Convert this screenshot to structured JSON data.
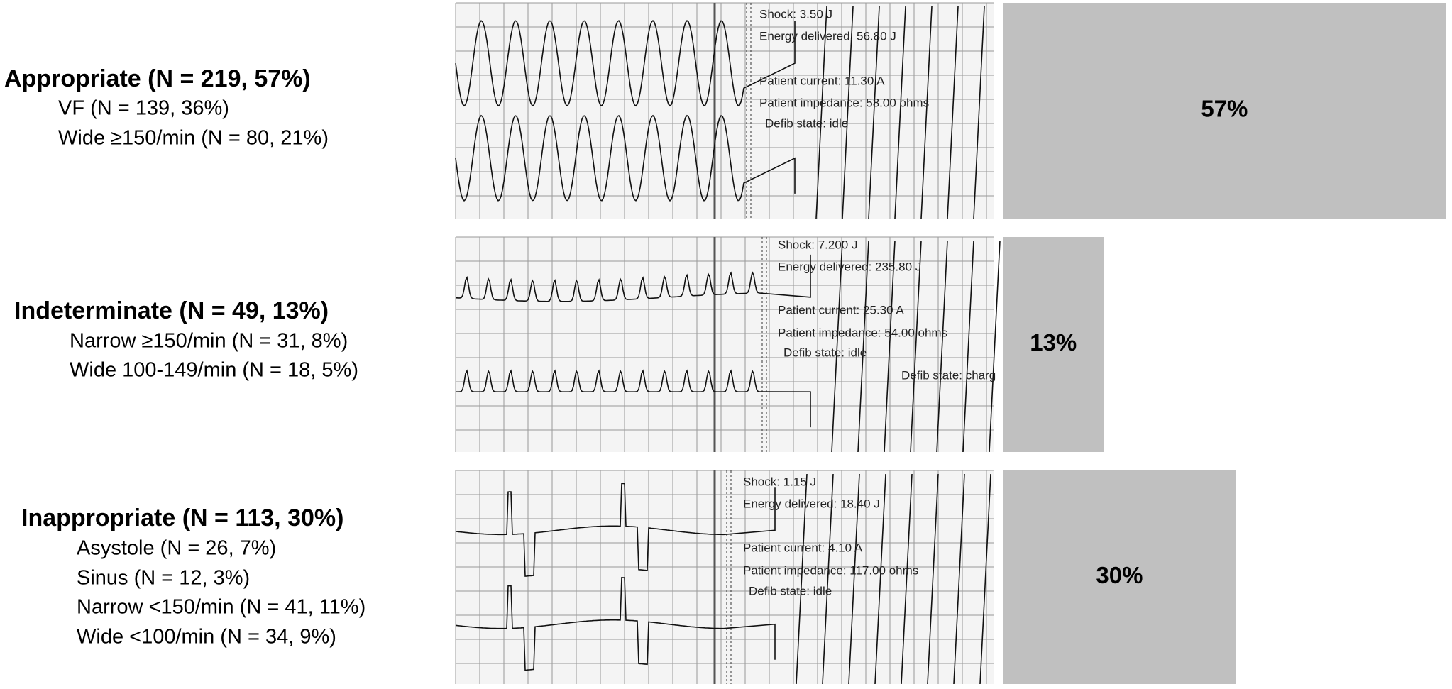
{
  "chart_data": {
    "type": "bar",
    "categories": [
      "Appropriate (N = 219, 57%)",
      "Indeterminate (N = 49, 13%)",
      "Inappropriate (N = 113, 30%)"
    ],
    "subcategories": [
      [
        "VF (N = 139, 36%)",
        "Wide ≥150/min (N = 80, 21%)"
      ],
      [
        "Narrow ≥150/min (N = 31, 8%)",
        "Wide 100-149/min (N = 18, 5%)"
      ],
      [
        "Asystole (N = 26, 7%)",
        "Sinus (N = 12, 3%)",
        "Narrow <150/min (N = 41, 11%)",
        "Wide <100/min (N = 34, 9%)"
      ]
    ],
    "values": [
      57,
      13,
      30
    ],
    "value_labels": [
      "57%",
      "13%",
      "30%"
    ],
    "color": "#c0c0c0",
    "annotations": [
      [
        "Shock: 3.50 J",
        "Energy delivered: 56.80 J",
        "Patient current: 11.30 A",
        "Patient impedance: 58.00 ohms",
        "Defib state: idle"
      ],
      [
        "Shock: 7.200 J",
        "Energy delivered: 235.80 J",
        "Patient current: 25.30 A",
        "Patient impedance: 54.00 ohms",
        "Defib state: idle",
        "Defib state: charg"
      ],
      [
        "Shock: 1.15 J",
        "Energy delivered: 18.40 J",
        "Patient current: 4.10 A",
        "Patient impedance: 117.00 ohms",
        "Defib state: idle"
      ]
    ]
  }
}
